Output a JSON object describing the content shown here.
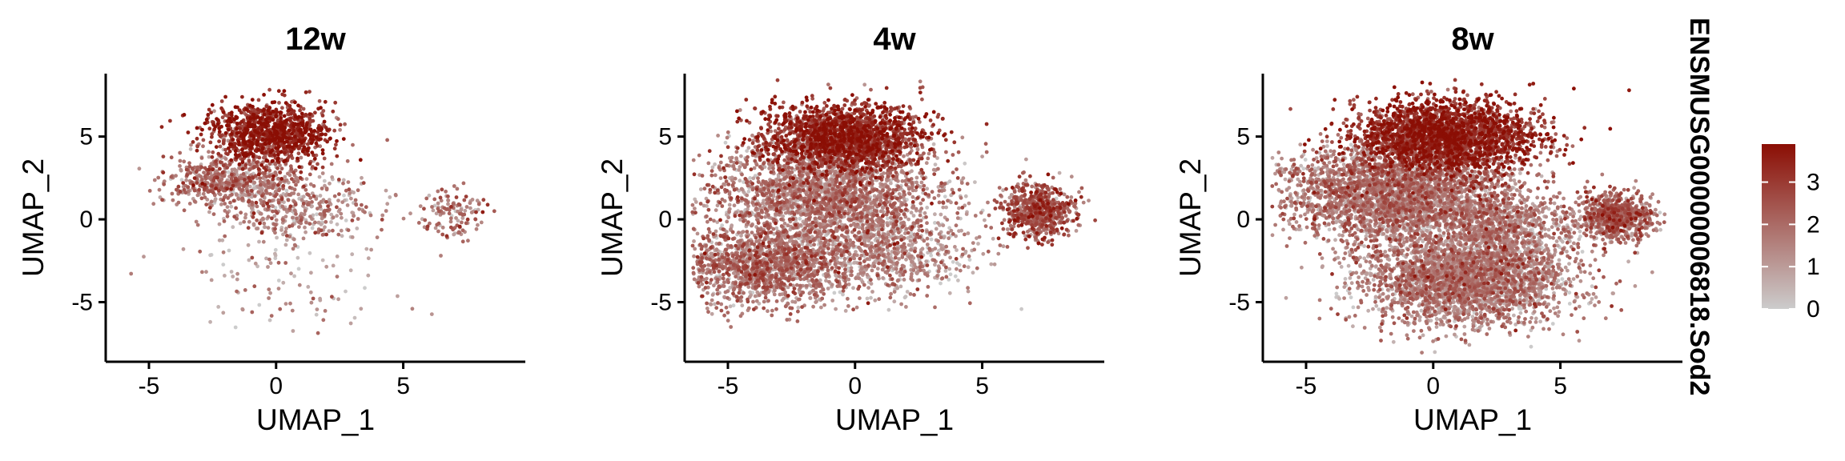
{
  "chart_data": {
    "type": "scatter",
    "subtype": "umap-feature-plot",
    "color_scale": {
      "low": "#cccccc",
      "high": "#8b0e04",
      "range": [
        0,
        3.9
      ]
    },
    "legend": {
      "title": "ENSMUSG00000006818.Sod2",
      "ticks": [
        0,
        1,
        2,
        3
      ],
      "position": "right"
    },
    "panels": [
      {
        "title": "12w",
        "xlabel": "UMAP_1",
        "ylabel": "UMAP_2",
        "xlim": [
          -6.7,
          9.8
        ],
        "ylim": [
          -8.6,
          8.8
        ],
        "xticks": [
          -5,
          0,
          5
        ],
        "yticks": [
          5,
          0,
          -5
        ],
        "point_count": 2200,
        "grid": false,
        "clusters": [
          {
            "x": -0.3,
            "y": 5.2,
            "sx": 1.2,
            "sy": 0.9,
            "w": 0.45,
            "expr": 3.3
          },
          {
            "x": -1.6,
            "y": 2.3,
            "sx": 1.3,
            "sy": 0.8,
            "w": 0.28,
            "expr": 1.7
          },
          {
            "x": 0.8,
            "y": 0.5,
            "sx": 1.6,
            "sy": 1.0,
            "w": 0.17,
            "expr": 1.3
          },
          {
            "x": 7.0,
            "y": 0.3,
            "sx": 0.6,
            "sy": 0.8,
            "w": 0.06,
            "expr": 1.8
          },
          {
            "x": 0.5,
            "y": -3.5,
            "sx": 2.5,
            "sy": 2.0,
            "w": 0.04,
            "expr": 1.2
          }
        ]
      },
      {
        "title": "4w",
        "xlabel": "UMAP_1",
        "ylabel": "UMAP_2",
        "xlim": [
          -6.7,
          9.8
        ],
        "ylim": [
          -8.6,
          8.8
        ],
        "xticks": [
          -5,
          0,
          5
        ],
        "yticks": [
          5,
          0,
          -5
        ],
        "point_count": 7000,
        "grid": false,
        "clusters": [
          {
            "x": -0.5,
            "y": 5.0,
            "sx": 1.5,
            "sy": 1.0,
            "w": 0.27,
            "expr": 3.0
          },
          {
            "x": -1.2,
            "y": 1.5,
            "sx": 2.2,
            "sy": 1.5,
            "w": 0.33,
            "expr": 1.5
          },
          {
            "x": -3.5,
            "y": -2.8,
            "sx": 1.8,
            "sy": 1.2,
            "w": 0.22,
            "expr": 1.6
          },
          {
            "x": 1.5,
            "y": -2.0,
            "sx": 1.6,
            "sy": 1.3,
            "w": 0.09,
            "expr": 1.2
          },
          {
            "x": 7.2,
            "y": 0.5,
            "sx": 0.7,
            "sy": 0.8,
            "w": 0.09,
            "expr": 2.3
          }
        ]
      },
      {
        "title": "8w",
        "xlabel": "UMAP_1",
        "ylabel": "UMAP_2",
        "xlim": [
          -6.7,
          9.8
        ],
        "ylim": [
          -8.6,
          8.8
        ],
        "xticks": [
          -5,
          0,
          5
        ],
        "yticks": [
          5,
          0,
          -5
        ],
        "point_count": 10000,
        "grid": false,
        "clusters": [
          {
            "x": 0.5,
            "y": 5.0,
            "sx": 1.8,
            "sy": 1.1,
            "w": 0.24,
            "expr": 3.1
          },
          {
            "x": -1.5,
            "y": 1.5,
            "sx": 2.2,
            "sy": 1.4,
            "w": 0.3,
            "expr": 1.5
          },
          {
            "x": 1.3,
            "y": -3.6,
            "sx": 2.0,
            "sy": 1.4,
            "w": 0.3,
            "expr": 1.4
          },
          {
            "x": 2.8,
            "y": -0.6,
            "sx": 1.3,
            "sy": 1.2,
            "w": 0.08,
            "expr": 1.3
          },
          {
            "x": 7.2,
            "y": 0.2,
            "sx": 0.7,
            "sy": 0.7,
            "w": 0.08,
            "expr": 1.8
          }
        ]
      }
    ]
  }
}
